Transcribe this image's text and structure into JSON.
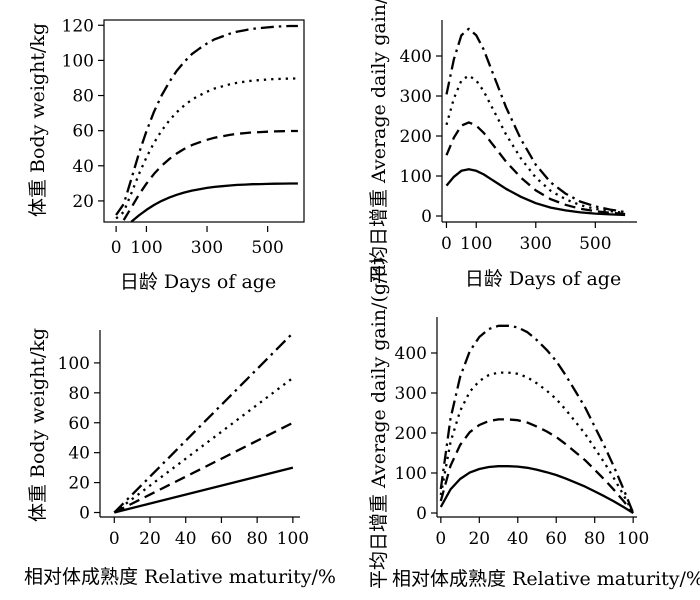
{
  "chart_data": [
    {
      "type": "line",
      "panel": "top-left",
      "xlabel": "日龄 Days of age",
      "ylabel": "体重 Body weight/kg",
      "xlim": [
        -40,
        620
      ],
      "ylim": [
        8,
        123
      ],
      "xticks": [
        0,
        100,
        300,
        500
      ],
      "yticks": [
        20,
        40,
        60,
        80,
        100,
        120
      ],
      "frame": "box",
      "grid": false,
      "x": [
        0,
        25,
        50,
        75,
        100,
        125,
        150,
        175,
        200,
        225,
        250,
        275,
        300,
        325,
        350,
        375,
        400,
        425,
        450,
        475,
        500,
        525,
        550,
        575,
        600
      ],
      "series": [
        {
          "style": "solid",
          "values": [
            null,
            null,
            8.1,
            11.7,
            14.9,
            17.7,
            20.0,
            21.9,
            23.5,
            24.8,
            25.9,
            26.7,
            27.4,
            28.0,
            28.4,
            28.8,
            29.1,
            29.3,
            29.5,
            29.6,
            29.7,
            29.8,
            29.85,
            29.9,
            29.9
          ]
        },
        {
          "style": "dashed",
          "values": [
            null,
            9.1,
            16.2,
            23.4,
            29.8,
            35.4,
            40.0,
            43.8,
            47.0,
            49.6,
            51.8,
            53.4,
            54.8,
            56.0,
            56.8,
            57.6,
            58.2,
            58.6,
            59.0,
            59.2,
            59.4,
            59.6,
            59.7,
            59.8,
            59.8
          ]
        },
        {
          "style": "dotted",
          "values": [
            10.0,
            13.7,
            24.3,
            35.1,
            44.7,
            53.1,
            60.0,
            65.7,
            70.5,
            74.4,
            77.7,
            80.1,
            82.2,
            84.0,
            85.2,
            86.4,
            87.3,
            87.9,
            88.5,
            88.8,
            89.1,
            89.4,
            89.55,
            89.7,
            89.7
          ]
        },
        {
          "style": "dash-dot",
          "values": [
            12.0,
            18.2,
            32.4,
            46.8,
            59.6,
            70.8,
            80.0,
            87.6,
            94.0,
            99.2,
            103.6,
            106.8,
            109.6,
            112.0,
            113.6,
            115.2,
            116.4,
            117.2,
            118.0,
            118.4,
            118.8,
            119.2,
            119.4,
            119.6,
            119.6
          ]
        }
      ]
    },
    {
      "type": "line",
      "panel": "top-right",
      "xlabel": "日龄 Days of age",
      "ylabel": "平均日增重 Average daily gain/(g/d)",
      "xlim": [
        -15,
        640
      ],
      "ylim": [
        -15,
        490
      ],
      "xticks": [
        0,
        100,
        300,
        500
      ],
      "yticks": [
        0,
        100,
        200,
        300,
        400
      ],
      "frame": "left-bottom",
      "grid": false,
      "x": [
        0,
        25,
        50,
        75,
        100,
        125,
        150,
        175,
        200,
        250,
        300,
        350,
        400,
        450,
        500,
        550,
        600
      ],
      "series": [
        {
          "style": "solid",
          "values": [
            76,
            98,
            113,
            117,
            113,
            104,
            92,
            80,
            68,
            48,
            32,
            21,
            14,
            9,
            6,
            4,
            2.5
          ]
        },
        {
          "style": "dashed",
          "values": [
            152,
            196,
            226,
            234,
            226,
            208,
            184,
            160,
            136,
            96,
            64,
            42,
            28,
            18,
            12,
            8,
            5
          ]
        },
        {
          "style": "dotted",
          "values": [
            228,
            294,
            339,
            351,
            339,
            312,
            276,
            240,
            204,
            144,
            96,
            63,
            42,
            27,
            18,
            12,
            7.5
          ]
        },
        {
          "style": "dash-dot",
          "values": [
            304,
            392,
            452,
            468,
            452,
            416,
            368,
            320,
            272,
            192,
            128,
            84,
            56,
            36,
            24,
            16,
            10
          ]
        }
      ]
    },
    {
      "type": "line",
      "panel": "bottom-left",
      "xlabel": "相对体成熟度 Relative maturity/%",
      "ylabel": "体重 Body weight/kg",
      "xlim": [
        -8,
        104
      ],
      "ylim": [
        -3,
        122
      ],
      "xticks": [
        0,
        20,
        40,
        60,
        80,
        100
      ],
      "yticks": [
        0,
        20,
        40,
        60,
        80,
        100
      ],
      "frame": "left-bottom",
      "grid": false,
      "x": [
        0,
        100
      ],
      "series": [
        {
          "style": "solid",
          "values": [
            0,
            30
          ]
        },
        {
          "style": "dashed",
          "values": [
            0,
            60
          ]
        },
        {
          "style": "dotted",
          "values": [
            0,
            90
          ]
        },
        {
          "style": "dash-dot",
          "values": [
            0,
            120
          ]
        }
      ]
    },
    {
      "type": "line",
      "panel": "bottom-right",
      "xlabel": "相对体成熟度 Relative maturity/%",
      "ylabel": "平均日增重 Average daily gain/(g/d)",
      "xlim": [
        -2,
        102
      ],
      "ylim": [
        -10,
        490
      ],
      "xticks": [
        0,
        20,
        40,
        60,
        80,
        100
      ],
      "yticks": [
        0,
        100,
        200,
        300,
        400
      ],
      "frame": "left-bottom",
      "grid": false,
      "x": [
        0,
        5,
        10,
        15,
        20,
        25,
        30,
        35,
        40,
        45,
        50,
        55,
        60,
        65,
        70,
        75,
        80,
        85,
        90,
        95,
        100
      ],
      "series": [
        {
          "style": "solid",
          "values": [
            15,
            59,
            85,
            101,
            110,
            115,
            117,
            117,
            116,
            113,
            108,
            102,
            95,
            86,
            76,
            66,
            54,
            42,
            29,
            15,
            0
          ]
        },
        {
          "style": "dashed",
          "values": [
            30,
            118,
            170,
            202,
            220,
            230,
            234,
            234,
            232,
            226,
            216,
            204,
            190,
            172,
            152,
            132,
            108,
            84,
            58,
            30,
            0
          ]
        },
        {
          "style": "dotted",
          "values": [
            45,
            177,
            255,
            303,
            330,
            345,
            351,
            351,
            348,
            339,
            324,
            306,
            285,
            258,
            228,
            198,
            162,
            126,
            87,
            45,
            0
          ]
        },
        {
          "style": "dash-dot",
          "values": [
            60,
            236,
            340,
            404,
            440,
            460,
            468,
            468,
            464,
            452,
            432,
            408,
            380,
            344,
            304,
            264,
            216,
            168,
            116,
            60,
            0
          ]
        }
      ]
    }
  ]
}
